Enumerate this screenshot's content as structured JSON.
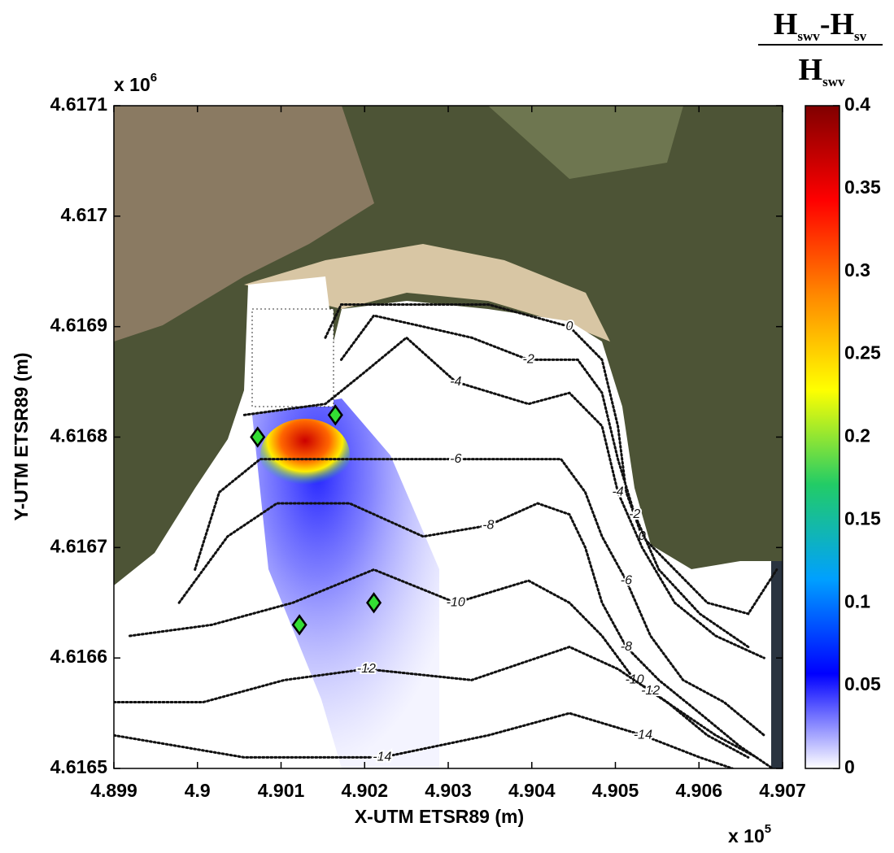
{
  "chart_data": {
    "type": "contour",
    "xlabel": "X-UTM ETSR89 (m)",
    "ylabel": "Y-UTM ETSR89 (m)",
    "x_multiplier": {
      "base": "x 10",
      "exponent": "5"
    },
    "y_multiplier": {
      "base": "x 10",
      "exponent": "6"
    },
    "xlim": [
      4.899,
      4.907
    ],
    "xticks": [
      4.899,
      4.9,
      4.901,
      4.902,
      4.903,
      4.904,
      4.905,
      4.906,
      4.907
    ],
    "ylim": [
      4.6165,
      4.6171
    ],
    "yticks": [
      4.6165,
      4.6166,
      4.6167,
      4.6168,
      4.6169,
      4.617,
      4.6171
    ],
    "contour_color": "#111111",
    "contours": [
      {
        "level": 0,
        "x": [
          4.90153,
          4.90172,
          4.9025,
          4.90348,
          4.90445,
          4.90484,
          4.90503,
          4.90513,
          4.90532,
          4.90571,
          4.9061,
          4.90659,
          4.90693
        ],
        "y": [
          4.61689,
          4.61692,
          4.61692,
          4.61692,
          4.6169,
          4.61687,
          4.61681,
          4.61675,
          4.61671,
          4.61668,
          4.61665,
          4.61664,
          4.61668
        ]
      },
      {
        "level": -2,
        "x": [
          4.90172,
          4.90211,
          4.9027,
          4.90328,
          4.90396,
          4.90455,
          4.90484,
          4.90503,
          4.90523,
          4.90552,
          4.90601,
          4.90659
        ],
        "y": [
          4.61687,
          4.61691,
          4.6169,
          4.61689,
          4.61687,
          4.61687,
          4.61684,
          4.61678,
          4.61673,
          4.61668,
          4.61664,
          4.61661
        ]
      },
      {
        "level": -4,
        "x": [
          4.90056,
          4.90153,
          4.90202,
          4.9025,
          4.90309,
          4.90396,
          4.90445,
          4.90484,
          4.90503,
          4.90532,
          4.90571,
          4.9062,
          4.90678
        ],
        "y": [
          4.61682,
          4.61683,
          4.61686,
          4.61689,
          4.61685,
          4.61683,
          4.61684,
          4.61681,
          4.61675,
          4.6167,
          4.61665,
          4.61662,
          4.6166
        ]
      },
      {
        "level": -6,
        "x": [
          4.89997,
          4.90026,
          4.90075,
          4.90153,
          4.90231,
          4.90309,
          4.90387,
          4.90435,
          4.90464,
          4.90484,
          4.90513,
          4.90542,
          4.90581,
          4.9063,
          4.90678
        ],
        "y": [
          4.61668,
          4.61675,
          4.61678,
          4.61678,
          4.61678,
          4.61678,
          4.61678,
          4.61678,
          4.61675,
          4.61671,
          4.61667,
          4.61662,
          4.61658,
          4.61656,
          4.61653
        ]
      },
      {
        "level": -8,
        "x": [
          4.89978,
          4.90036,
          4.90095,
          4.90182,
          4.9027,
          4.90348,
          4.90407,
          4.90445,
          4.90464,
          4.90484,
          4.90513,
          4.90552,
          4.90601,
          4.90649,
          4.90688
        ],
        "y": [
          4.61665,
          4.61671,
          4.61674,
          4.61674,
          4.61671,
          4.61672,
          4.61674,
          4.61673,
          4.6167,
          4.61665,
          4.61661,
          4.61658,
          4.61655,
          4.61652,
          4.6165
        ]
      },
      {
        "level": -10,
        "x": [
          4.89919,
          4.90017,
          4.90114,
          4.90211,
          4.90309,
          4.90396,
          4.90445,
          4.90484,
          4.90523,
          4.90562,
          4.9061,
          4.90659
        ],
        "y": [
          4.61662,
          4.61663,
          4.61665,
          4.61668,
          4.61665,
          4.61667,
          4.61665,
          4.61662,
          4.61658,
          4.61656,
          4.61653,
          4.61651
        ]
      },
      {
        "level": -12,
        "x": [
          4.899,
          4.90007,
          4.90104,
          4.90202,
          4.90328,
          4.90445,
          4.90503,
          4.90542,
          4.90581,
          4.9062,
          4.90669
        ],
        "y": [
          4.61656,
          4.61656,
          4.61658,
          4.61659,
          4.61658,
          4.61661,
          4.61659,
          4.61657,
          4.61655,
          4.61653,
          4.61651
        ]
      },
      {
        "level": -14,
        "x": [
          4.899,
          4.90056,
          4.90221,
          4.90348,
          4.90445,
          4.90533,
          4.90601,
          4.9064
        ],
        "y": [
          4.61653,
          4.61651,
          4.61651,
          4.61653,
          4.61655,
          4.61653,
          4.61651,
          4.6165
        ]
      }
    ],
    "markers": {
      "color": "#33dd33",
      "x": [
        4.90072,
        4.90165,
        4.90211,
        4.90122
      ],
      "y": [
        4.6168,
        4.61682,
        4.61665,
        4.61663
      ]
    },
    "colorbar": {
      "title": {
        "numerator": [
          "H",
          "swv",
          "-H",
          "sv"
        ],
        "denominator": [
          "H",
          "swv"
        ]
      },
      "lim": [
        0,
        0.4
      ],
      "ticks": [
        0,
        0.05,
        0.1,
        0.15,
        0.2,
        0.25,
        0.3,
        0.35,
        0.4
      ],
      "colors": [
        "#ffffff",
        "#0000ff",
        "#00a0ff",
        "#22cc66",
        "#ffff00",
        "#ff8800",
        "#ff0000",
        "#800000"
      ]
    }
  }
}
